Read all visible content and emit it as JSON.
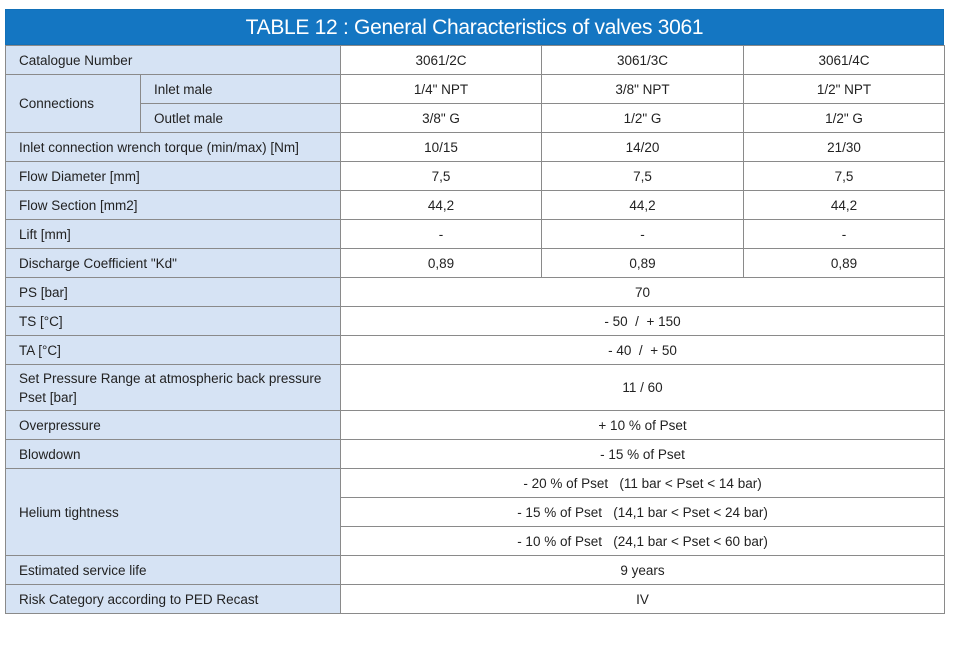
{
  "title": "TABLE 12 : General Characteristics of valves 3061",
  "colors": {
    "header": "#1476c2",
    "label_bg": "#d6e3f4",
    "border": "#8a8a8a"
  },
  "rows": [
    {
      "label": "Catalogue Number",
      "values": [
        "3061/2C",
        "3061/3C",
        "3061/4C"
      ]
    },
    {
      "group": "Connections",
      "label": "Inlet male",
      "values": [
        "1/4\" NPT",
        "3/8\" NPT",
        "1/2\" NPT"
      ]
    },
    {
      "group": "Connections",
      "label": "Outlet male",
      "values": [
        "3/8\" G",
        "1/2\" G",
        "1/2\" G"
      ]
    },
    {
      "label": "Inlet connection wrench torque (min/max) [Nm]",
      "values": [
        "10/15",
        "14/20",
        "21/30"
      ]
    },
    {
      "label": "Flow Diameter [mm]",
      "values": [
        "7,5",
        "7,5",
        "7,5"
      ]
    },
    {
      "label": "Flow Section [mm2]",
      "values": [
        "44,2",
        "44,2",
        "44,2"
      ]
    },
    {
      "label": "Lift [mm]",
      "values": [
        "-",
        "-",
        "-"
      ]
    },
    {
      "label": "Discharge Coefficient \"Kd\"",
      "values": [
        "0,89",
        "0,89",
        "0,89"
      ]
    },
    {
      "label": "PS [bar]",
      "values": [
        "70"
      ]
    },
    {
      "label": "TS [°C]",
      "values": [
        "- 50  /  + 150"
      ]
    },
    {
      "label": "TA [°C]",
      "values": [
        "- 40  /  + 50"
      ]
    },
    {
      "label": "Set Pressure Range at atmospheric back pressure Pset [bar]",
      "values": [
        "11 / 60"
      ],
      "tall": true
    },
    {
      "label": "Overpressure",
      "values": [
        "+ 10 % of Pset"
      ]
    },
    {
      "label": "Blowdown",
      "values": [
        "- 15 % of Pset"
      ]
    },
    {
      "group": "Helium tightness",
      "values": [
        "- 20 % of Pset   (11 bar < Pset < 14 bar)"
      ]
    },
    {
      "group": "Helium tightness",
      "values": [
        "- 15 % of Pset   (14,1 bar < Pset < 24 bar)"
      ]
    },
    {
      "group": "Helium tightness",
      "values": [
        "- 10 % of Pset   (24,1 bar < Pset < 60 bar)"
      ]
    },
    {
      "label": "Estimated service life",
      "values": [
        "9 years"
      ]
    },
    {
      "label": "Risk Category according to PED Recast",
      "values": [
        "IV"
      ]
    }
  ]
}
